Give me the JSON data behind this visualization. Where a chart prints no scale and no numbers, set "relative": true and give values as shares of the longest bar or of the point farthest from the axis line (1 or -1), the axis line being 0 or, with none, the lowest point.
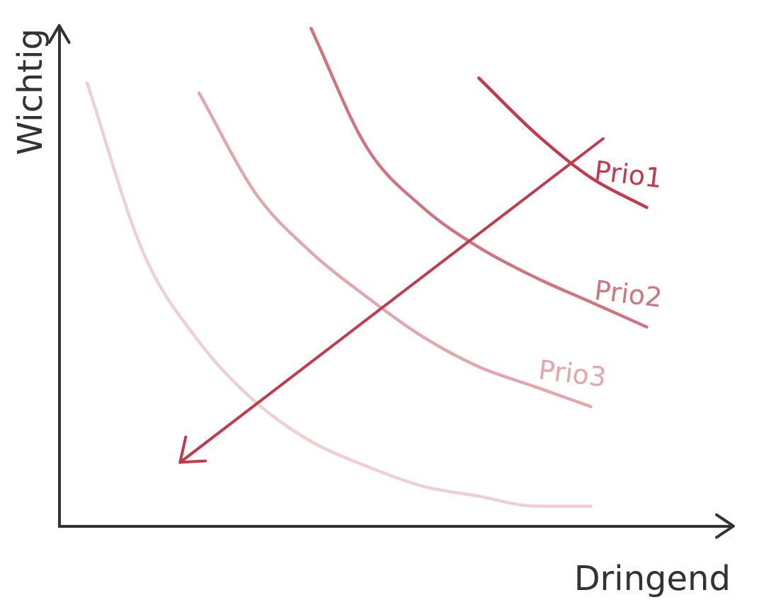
{
  "chart_data": {
    "type": "line",
    "relative": true,
    "xlabel": "Dringend",
    "ylabel": "Wichtig",
    "categories": [
      null,
      null,
      null,
      null,
      null,
      null,
      null,
      null,
      null,
      null,
      null,
      null
    ],
    "series": [
      {
        "color": "#f0cfd2",
        "values": [
          0.89,
          0.55,
          0.37,
          0.25,
          0.17,
          0.12,
          0.08,
          0.06,
          0.04,
          0.04,
          null,
          null
        ]
      },
      {
        "name": "Prio3",
        "color": "#e3a6ac",
        "values": [
          null,
          null,
          0.87,
          0.67,
          0.55,
          0.46,
          0.38,
          0.32,
          0.28,
          0.24,
          null,
          null
        ]
      },
      {
        "name": "Prio2",
        "color": "#d07580",
        "values": [
          null,
          null,
          null,
          null,
          1,
          0.76,
          0.64,
          0.56,
          0.5,
          0.45,
          0.4,
          null
        ]
      },
      {
        "name": "Prio1",
        "color": "#c23b4c",
        "values": [
          null,
          null,
          null,
          null,
          null,
          null,
          null,
          0.9,
          0.79,
          0.7,
          0.64,
          null
        ]
      }
    ],
    "grid": false,
    "legend": false,
    "marker": "none",
    "line_style": "solid"
  }
}
